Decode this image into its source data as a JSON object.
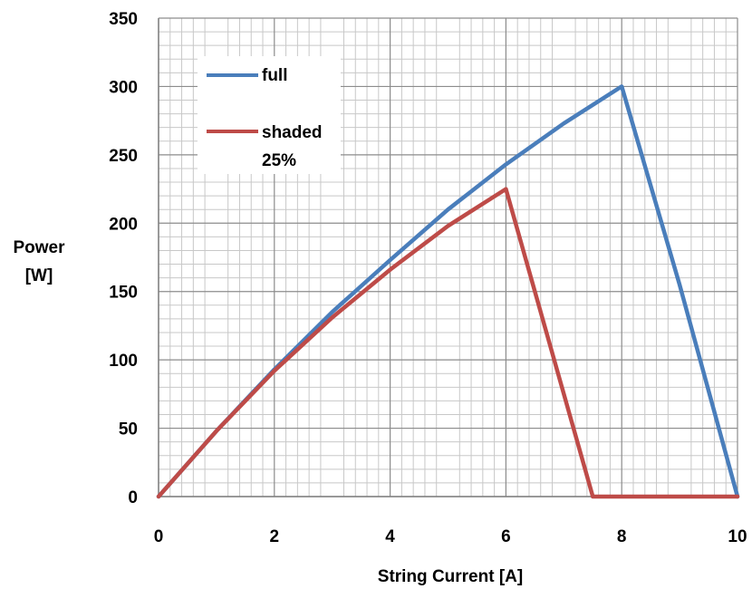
{
  "chart_data": {
    "type": "line",
    "xlabel": "String Current [A]",
    "ylabel_lines": [
      "Power",
      "[W]"
    ],
    "xlim": [
      0,
      10
    ],
    "ylim": [
      0,
      350
    ],
    "x_ticks": [
      "0",
      "2",
      "4",
      "6",
      "8",
      "10"
    ],
    "y_ticks": [
      "0",
      "50",
      "100",
      "150",
      "200",
      "250",
      "300",
      "350"
    ],
    "grid": true,
    "legend_position": "top-left",
    "series": [
      {
        "name": "full",
        "color": "#4a7ebb",
        "x": [
          0,
          1,
          2,
          3,
          4,
          5,
          6,
          7,
          8,
          9,
          10
        ],
        "y": [
          0,
          48,
          93,
          135,
          173,
          210,
          243,
          273,
          300,
          155,
          0
        ]
      },
      {
        "name": "shaded 25%",
        "legend_lines": [
          "shaded",
          "25%"
        ],
        "color": "#be4b48",
        "x": [
          0,
          1,
          2,
          3,
          4,
          5,
          6,
          7.5,
          10
        ],
        "y": [
          0,
          48,
          92,
          131,
          166,
          198,
          225,
          0,
          0
        ]
      }
    ]
  }
}
